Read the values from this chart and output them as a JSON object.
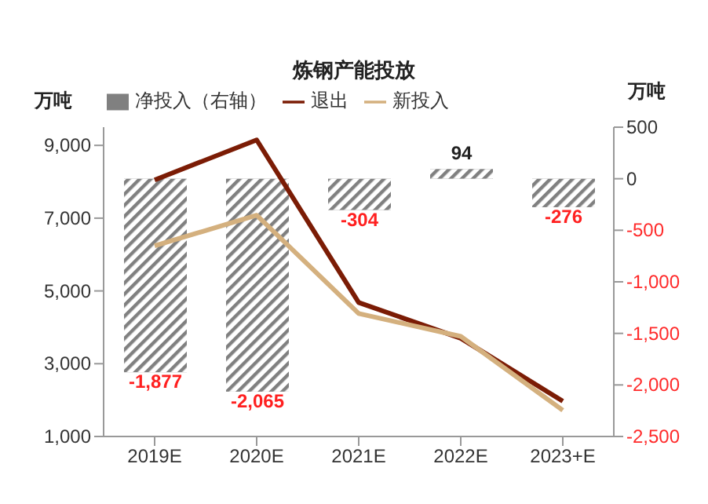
{
  "chart_data": {
    "type": "line",
    "title": "炼钢产能投放",
    "ylabel": "万吨",
    "y2label": "万吨",
    "categories": [
      "2019E",
      "2020E",
      "2021E",
      "2022E",
      "2023+E"
    ],
    "series": [
      {
        "name": "净投入（右轴）",
        "type": "bar",
        "axis": "y2",
        "color": "#808080",
        "values": [
          -1877,
          -2065,
          -304,
          94,
          -276
        ],
        "value_labels": [
          "-1,877",
          "-2,065",
          "-304",
          "94",
          "-276"
        ]
      },
      {
        "name": "退出",
        "color": "#7b1c05",
        "values": [
          8050,
          9150,
          4680,
          3700,
          1970
        ]
      },
      {
        "name": "新投入",
        "color": "#d4b07e",
        "values": [
          6240,
          7080,
          4380,
          3750,
          1720
        ]
      }
    ],
    "ylim": [
      1000,
      9500
    ],
    "yticks": [
      {
        "value": 1000,
        "label": "1,000"
      },
      {
        "value": 3000,
        "label": "3,000"
      },
      {
        "value": 5000,
        "label": "5,000"
      },
      {
        "value": 7000,
        "label": "7,000"
      },
      {
        "value": 9000,
        "label": "9,000"
      }
    ],
    "y2lim": [
      -2500,
      500
    ],
    "y2ticks": [
      {
        "value": -2500,
        "label": "-2,500"
      },
      {
        "value": -2000,
        "label": "-2,000"
      },
      {
        "value": -1500,
        "label": "-1,500"
      },
      {
        "value": -1000,
        "label": "-1,000"
      },
      {
        "value": -500,
        "label": "-500"
      },
      0,
      500
    ],
    "legend": "top",
    "marker": "none",
    "line_style": "solid"
  }
}
